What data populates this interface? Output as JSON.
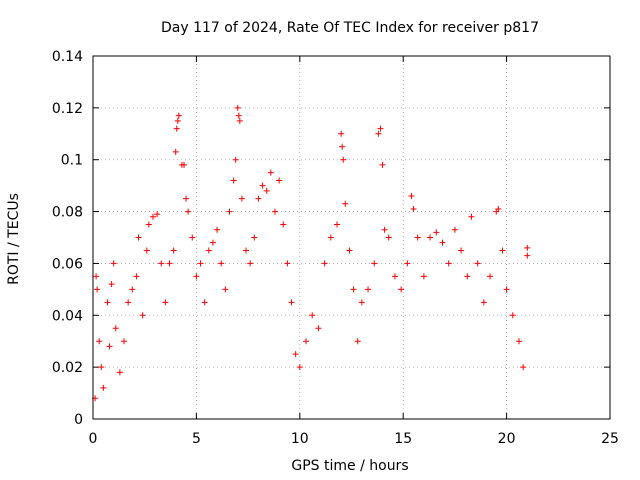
{
  "chart_data": {
    "type": "scatter",
    "title": "Day 117 of 2024, Rate Of TEC Index for receiver p817",
    "xlabel": "GPS time / hours",
    "ylabel": "ROTI / TECUs",
    "xlim": [
      0,
      25
    ],
    "ylim": [
      0,
      0.14
    ],
    "x_ticks": [
      "0",
      "5",
      "10",
      "15",
      "20",
      "25"
    ],
    "y_ticks": [
      "0",
      "0.02",
      "0.04",
      "0.06",
      "0.08",
      "0.1",
      "0.12",
      "0.14"
    ],
    "grid": true,
    "marker": "plus",
    "color": "#ff0000",
    "series": [
      {
        "points": [
          [
            0.1,
            0.008
          ],
          [
            0.15,
            0.055
          ],
          [
            0.2,
            0.05
          ],
          [
            0.3,
            0.03
          ],
          [
            0.4,
            0.02
          ],
          [
            0.5,
            0.012
          ],
          [
            0.7,
            0.045
          ],
          [
            0.8,
            0.028
          ],
          [
            0.9,
            0.052
          ],
          [
            1.0,
            0.06
          ],
          [
            1.1,
            0.035
          ],
          [
            1.3,
            0.018
          ],
          [
            1.5,
            0.03
          ],
          [
            1.7,
            0.045
          ],
          [
            1.9,
            0.05
          ],
          [
            2.1,
            0.055
          ],
          [
            2.2,
            0.07
          ],
          [
            2.4,
            0.04
          ],
          [
            2.6,
            0.065
          ],
          [
            2.7,
            0.075
          ],
          [
            2.9,
            0.078
          ],
          [
            3.1,
            0.079
          ],
          [
            3.3,
            0.06
          ],
          [
            3.5,
            0.045
          ],
          [
            3.7,
            0.06
          ],
          [
            3.9,
            0.065
          ],
          [
            4.0,
            0.103
          ],
          [
            4.05,
            0.112
          ],
          [
            4.1,
            0.115
          ],
          [
            4.15,
            0.117
          ],
          [
            4.3,
            0.098
          ],
          [
            4.4,
            0.098
          ],
          [
            4.5,
            0.085
          ],
          [
            4.6,
            0.08
          ],
          [
            4.8,
            0.07
          ],
          [
            5.0,
            0.055
          ],
          [
            5.2,
            0.06
          ],
          [
            5.4,
            0.045
          ],
          [
            5.6,
            0.065
          ],
          [
            5.8,
            0.068
          ],
          [
            6.0,
            0.073
          ],
          [
            6.2,
            0.06
          ],
          [
            6.4,
            0.05
          ],
          [
            6.6,
            0.08
          ],
          [
            6.8,
            0.092
          ],
          [
            6.9,
            0.1
          ],
          [
            7.0,
            0.12
          ],
          [
            7.05,
            0.117
          ],
          [
            7.1,
            0.115
          ],
          [
            7.2,
            0.085
          ],
          [
            7.4,
            0.065
          ],
          [
            7.6,
            0.06
          ],
          [
            7.8,
            0.07
          ],
          [
            8.0,
            0.085
          ],
          [
            8.2,
            0.09
          ],
          [
            8.4,
            0.088
          ],
          [
            8.6,
            0.095
          ],
          [
            8.8,
            0.08
          ],
          [
            9.0,
            0.092
          ],
          [
            9.2,
            0.075
          ],
          [
            9.4,
            0.06
          ],
          [
            9.6,
            0.045
          ],
          [
            9.8,
            0.025
          ],
          [
            10.0,
            0.02
          ],
          [
            10.3,
            0.03
          ],
          [
            10.6,
            0.04
          ],
          [
            10.9,
            0.035
          ],
          [
            11.2,
            0.06
          ],
          [
            11.5,
            0.07
          ],
          [
            11.8,
            0.075
          ],
          [
            12.0,
            0.11
          ],
          [
            12.05,
            0.105
          ],
          [
            12.1,
            0.1
          ],
          [
            12.2,
            0.083
          ],
          [
            12.4,
            0.065
          ],
          [
            12.6,
            0.05
          ],
          [
            12.8,
            0.03
          ],
          [
            13.0,
            0.045
          ],
          [
            13.3,
            0.05
          ],
          [
            13.6,
            0.06
          ],
          [
            13.8,
            0.11
          ],
          [
            13.9,
            0.112
          ],
          [
            14.0,
            0.098
          ],
          [
            14.1,
            0.073
          ],
          [
            14.3,
            0.07
          ],
          [
            14.6,
            0.055
          ],
          [
            14.9,
            0.05
          ],
          [
            15.2,
            0.06
          ],
          [
            15.4,
            0.086
          ],
          [
            15.5,
            0.081
          ],
          [
            15.7,
            0.07
          ],
          [
            16.0,
            0.055
          ],
          [
            16.3,
            0.07
          ],
          [
            16.6,
            0.072
          ],
          [
            16.9,
            0.068
          ],
          [
            17.2,
            0.06
          ],
          [
            17.5,
            0.073
          ],
          [
            17.8,
            0.065
          ],
          [
            18.1,
            0.055
          ],
          [
            18.3,
            0.078
          ],
          [
            18.6,
            0.06
          ],
          [
            18.9,
            0.045
          ],
          [
            19.2,
            0.055
          ],
          [
            19.5,
            0.08
          ],
          [
            19.6,
            0.081
          ],
          [
            19.8,
            0.065
          ],
          [
            20.0,
            0.05
          ],
          [
            20.3,
            0.04
          ],
          [
            20.6,
            0.03
          ],
          [
            20.8,
            0.02
          ],
          [
            21.0,
            0.066
          ],
          [
            21.0,
            0.063
          ]
        ]
      }
    ]
  }
}
